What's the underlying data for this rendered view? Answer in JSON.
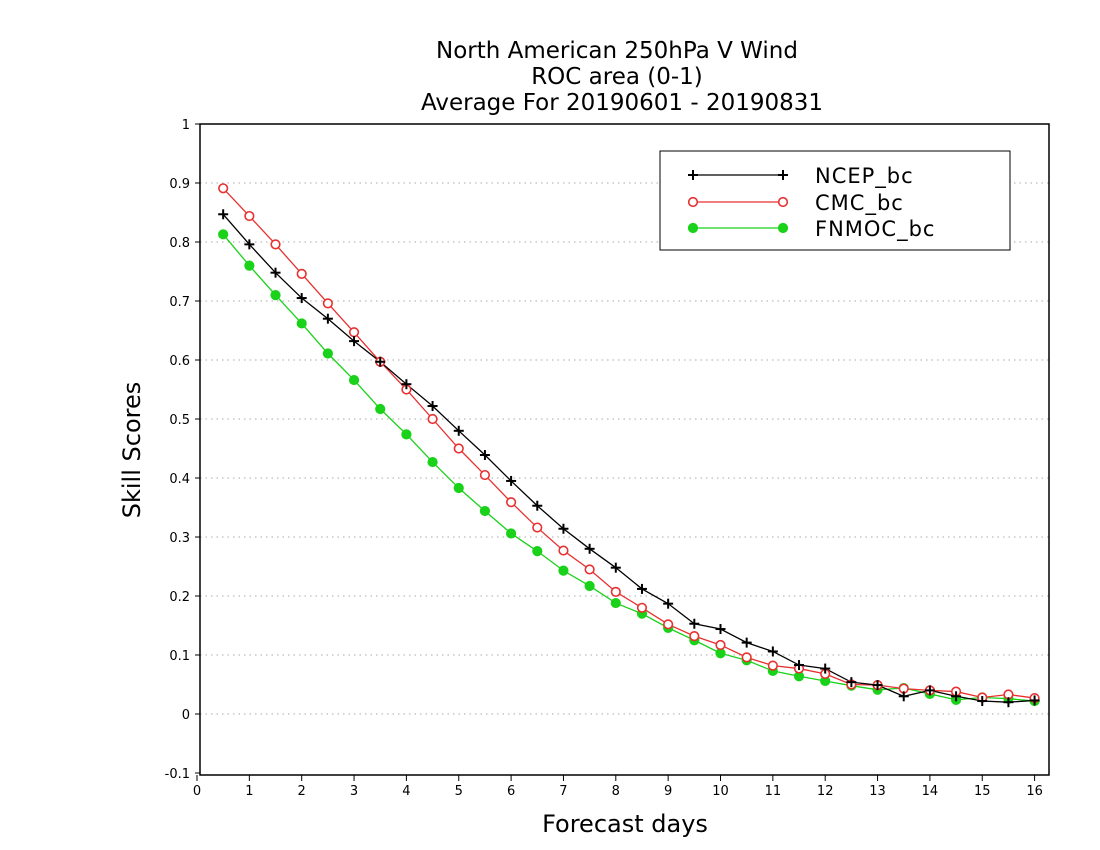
{
  "chart_data": {
    "type": "line",
    "title": [
      "North American 250hPa V Wind",
      "ROC area (0-1)",
      "Average For 20190601 - 20190831"
    ],
    "xlabel": "Forecast days",
    "ylabel": "Skill Scores",
    "xlim": [
      0,
      16.25
    ],
    "ylim": [
      -0.1,
      1
    ],
    "xticks": [
      0,
      1,
      2,
      3,
      4,
      5,
      6,
      7,
      8,
      9,
      10,
      11,
      12,
      13,
      14,
      15,
      16
    ],
    "yticks": [
      -0.1,
      0,
      0.1,
      0.2,
      0.3,
      0.4,
      0.5,
      0.6,
      0.7,
      0.8,
      0.9,
      1
    ],
    "ytick_labels": [
      "-0.1",
      "0",
      "0.1",
      "0.2",
      "0.3",
      "0.4",
      "0.5",
      "0.6",
      "0.7",
      "0.8",
      "0.9",
      "1"
    ],
    "grid": "horizontal dotted",
    "legend_position": "top-right",
    "x": [
      0.5,
      1,
      1.5,
      2,
      2.5,
      3,
      3.5,
      4,
      4.5,
      5,
      5.5,
      6,
      6.5,
      7,
      7.5,
      8,
      8.5,
      9,
      9.5,
      10,
      10.5,
      11,
      11.5,
      12,
      12.5,
      13,
      13.5,
      14,
      14.5,
      15,
      15.5,
      16
    ],
    "series": [
      {
        "name": "NCEP_bc",
        "color": "#000000",
        "marker": "plus",
        "values": [
          0.847,
          0.796,
          0.748,
          0.705,
          0.67,
          0.632,
          0.597,
          0.559,
          0.522,
          0.48,
          0.439,
          0.395,
          0.353,
          0.314,
          0.28,
          0.248,
          0.212,
          0.187,
          0.153,
          0.144,
          0.121,
          0.106,
          0.083,
          0.077,
          0.054,
          0.049,
          0.03,
          0.04,
          0.03,
          0.022,
          0.02,
          0.023
        ]
      },
      {
        "name": "CMC_bc",
        "color": "#e83030",
        "marker": "open-circle",
        "values": [
          0.891,
          0.844,
          0.796,
          0.746,
          0.696,
          0.647,
          0.597,
          0.55,
          0.5,
          0.45,
          0.405,
          0.359,
          0.316,
          0.277,
          0.245,
          0.207,
          0.18,
          0.152,
          0.132,
          0.117,
          0.096,
          0.082,
          0.077,
          0.068,
          0.05,
          0.049,
          0.043,
          0.04,
          0.038,
          0.028,
          0.033,
          0.027
        ]
      },
      {
        "name": "FNMOC_bc",
        "color": "#19d219",
        "marker": "filled-circle",
        "values": [
          0.813,
          0.76,
          0.71,
          0.662,
          0.611,
          0.566,
          0.517,
          0.474,
          0.427,
          0.383,
          0.344,
          0.306,
          0.276,
          0.243,
          0.217,
          0.188,
          0.17,
          0.146,
          0.125,
          0.103,
          0.091,
          0.073,
          0.064,
          0.056,
          0.048,
          0.041,
          0.044,
          0.034,
          0.024,
          0.028,
          0.026,
          0.022
        ]
      }
    ]
  }
}
